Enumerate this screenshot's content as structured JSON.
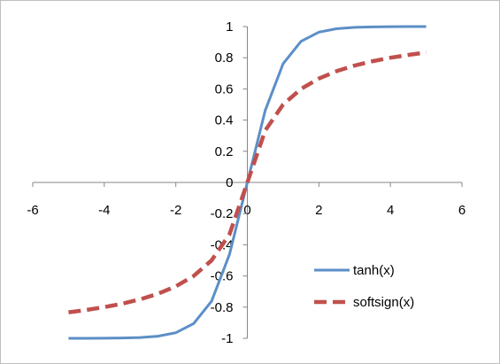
{
  "chart_data": {
    "type": "line",
    "title": "",
    "xlabel": "",
    "ylabel": "",
    "xlim": [
      -6,
      6
    ],
    "ylim": [
      -1,
      1
    ],
    "x_ticks": [
      -6,
      -4,
      -2,
      0,
      2,
      4,
      6
    ],
    "y_ticks": [
      -1,
      -0.8,
      -0.6,
      -0.4,
      -0.2,
      0,
      0.2,
      0.4,
      0.6,
      0.8,
      1
    ],
    "x_tick_labels": [
      "-6",
      "-4",
      "-2",
      "0",
      "2",
      "4",
      "6"
    ],
    "y_tick_labels": [
      "-1",
      "-0.8",
      "-0.6",
      "-0.4",
      "-0.2",
      "0",
      "0.2",
      "0.4",
      "0.6",
      "0.8",
      "1"
    ],
    "grid": false,
    "legend_position": "bottom-right",
    "x": [
      -5,
      -4.5,
      -4,
      -3.5,
      -3,
      -2.5,
      -2,
      -1.5,
      -1,
      -0.5,
      0,
      0.5,
      1,
      1.5,
      2,
      2.5,
      3,
      3.5,
      4,
      4.5,
      5
    ],
    "series": [
      {
        "name": "tanh(x)",
        "color": "#5b8fc7",
        "dash": "solid",
        "values": [
          -0.9999,
          -0.9998,
          -0.9993,
          -0.9982,
          -0.9951,
          -0.9866,
          -0.964,
          -0.9051,
          -0.7616,
          -0.4621,
          0,
          0.4621,
          0.7616,
          0.9051,
          0.964,
          0.9866,
          0.9951,
          0.9982,
          0.9993,
          0.9998,
          0.9999
        ]
      },
      {
        "name": "softsign(x)",
        "color": "#c0504d",
        "dash": "dashed",
        "values": [
          -0.8333,
          -0.8182,
          -0.8,
          -0.7778,
          -0.75,
          -0.7143,
          -0.6667,
          -0.6,
          -0.5,
          -0.3333,
          0,
          0.3333,
          0.5,
          0.6,
          0.6667,
          0.7143,
          0.75,
          0.7778,
          0.8,
          0.8182,
          0.8333
        ]
      }
    ]
  }
}
